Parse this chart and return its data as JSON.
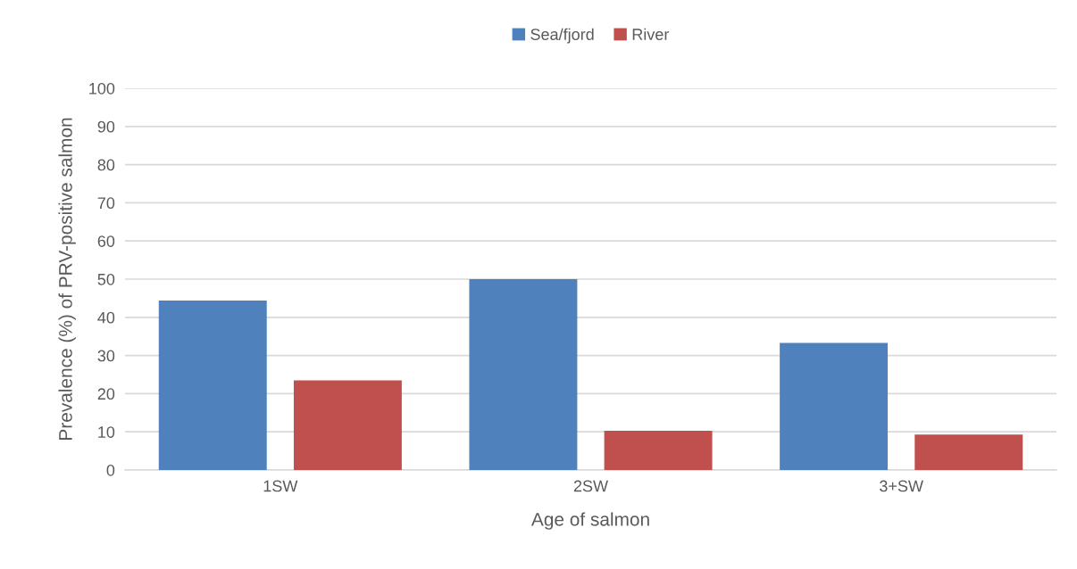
{
  "chart_data": {
    "type": "bar",
    "xlabel": "Age of salmon",
    "ylabel": "Prevalence (%) of PRV-positive salmon",
    "categories": [
      "1SW",
      "2SW",
      "3+SW"
    ],
    "series": [
      {
        "name": "Sea/fjord",
        "color": "#4f81bd",
        "values": [
          44.4,
          50,
          33.3
        ]
      },
      {
        "name": "River",
        "color": "#c0504d",
        "values": [
          23.5,
          10.3,
          9.3
        ]
      }
    ],
    "ylim": [
      0,
      100
    ],
    "yticks": [
      0,
      10,
      20,
      30,
      40,
      50,
      60,
      70,
      80,
      90,
      100
    ],
    "grid": "y",
    "legend": "top"
  }
}
